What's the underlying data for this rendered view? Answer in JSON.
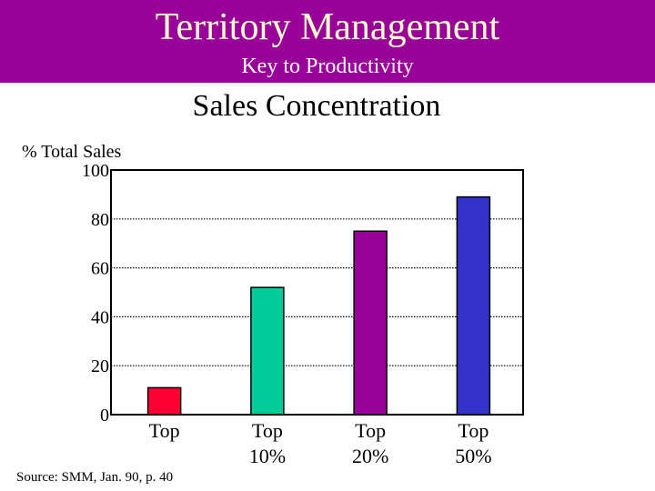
{
  "header": {
    "title": "Territory Management",
    "subtitle": "Key to Productivity"
  },
  "source_note": "Source: SMM, Jan. 90, p. 40",
  "colors": {
    "header_bg": "#990099",
    "header_title": "#ffffcc"
  },
  "chart_data": {
    "type": "bar",
    "title": "Sales Concentration",
    "ylabel": "% Total Sales",
    "xlabel": "",
    "ylim": [
      0,
      100
    ],
    "yticks": [
      0,
      20,
      40,
      60,
      80,
      100
    ],
    "grid": true,
    "categories": [
      {
        "line1": "Top",
        "line2": ""
      },
      {
        "line1": "Top",
        "line2": "10%"
      },
      {
        "line1": "Top",
        "line2": "20%"
      },
      {
        "line1": "Top",
        "line2": "50%"
      }
    ],
    "values": [
      11,
      52,
      75,
      89
    ],
    "bar_colors": [
      "#ff0033",
      "#00cc99",
      "#990099",
      "#3333cc"
    ]
  }
}
